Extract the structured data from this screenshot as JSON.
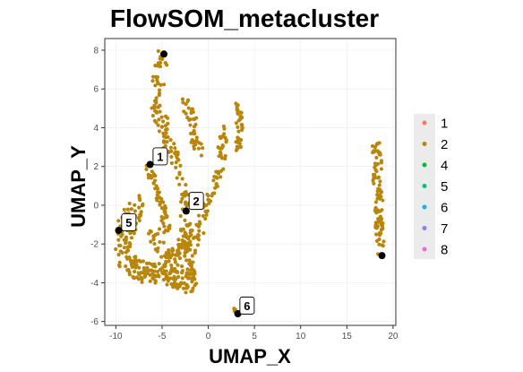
{
  "colors": {
    "panel_background": "#ffffff",
    "panel_border": "#333333",
    "grid": "#ebebeb",
    "legend_background": "#ebebeb",
    "centroid": "#000000",
    "point_default": "#B8860B"
  },
  "chart_data": {
    "type": "scatter",
    "title": "FlowSOM_metacluster",
    "xlabel": "UMAP_X",
    "ylabel": "UMAP_Y",
    "xlim": [
      -11.2,
      20.3
    ],
    "ylim": [
      -6.2,
      8.6
    ],
    "xticks": [
      -10,
      -5,
      0,
      5,
      10,
      15,
      20
    ],
    "yticks": [
      -6,
      -4,
      -2,
      0,
      2,
      4,
      6,
      8
    ],
    "grid": true,
    "legend_position": "right",
    "legend": [
      {
        "label": "1",
        "color": "#F8766D"
      },
      {
        "label": "2",
        "color": "#B8860B"
      },
      {
        "label": "4",
        "color": "#00BA38"
      },
      {
        "label": "5",
        "color": "#00C08B"
      },
      {
        "label": "6",
        "color": "#00B4EF"
      },
      {
        "label": "7",
        "color": "#8B7CFF"
      },
      {
        "label": "8",
        "color": "#F564E3"
      }
    ],
    "point_clusters": [
      {
        "label": "2",
        "path": [
          [
            -4.9,
            7.6
          ],
          [
            -5.3,
            6.6
          ],
          [
            -5.8,
            5.8
          ],
          [
            -5.6,
            5.0
          ],
          [
            -5.0,
            4.4
          ],
          [
            -4.6,
            3.5
          ],
          [
            -3.9,
            2.8
          ],
          [
            -3.2,
            2.1
          ],
          [
            -2.8,
            1.0
          ],
          [
            -2.5,
            0.1
          ],
          [
            -2.4,
            -0.9
          ],
          [
            -2.2,
            -2.0
          ],
          [
            -1.9,
            -3.2
          ],
          [
            -1.8,
            -3.9
          ]
        ],
        "width": 0.6,
        "n": 170
      },
      {
        "label": "2",
        "path": [
          [
            -2.6,
            5.5
          ],
          [
            -2.2,
            4.9
          ],
          [
            -1.8,
            4.2
          ],
          [
            -1.4,
            3.4
          ],
          [
            -1.0,
            2.7
          ]
        ],
        "width": 0.5,
        "n": 45
      },
      {
        "label": "2",
        "path": [
          [
            -6.3,
            2.1
          ],
          [
            -5.9,
            1.3
          ],
          [
            -5.4,
            0.6
          ],
          [
            -4.9,
            -0.2
          ],
          [
            -4.6,
            -0.9
          ],
          [
            -4.3,
            -1.6
          ]
        ],
        "width": 0.4,
        "n": 50
      },
      {
        "label": "2",
        "path": [
          [
            1.6,
            4.0
          ],
          [
            1.5,
            2.8
          ],
          [
            1.2,
            1.8
          ],
          [
            0.6,
            0.9
          ],
          [
            0.0,
            0.1
          ],
          [
            -0.6,
            -0.7
          ],
          [
            -1.2,
            -1.5
          ],
          [
            -1.7,
            -2.3
          ]
        ],
        "width": 0.5,
        "n": 75
      },
      {
        "label": "2",
        "path": [
          [
            3.1,
            5.3
          ],
          [
            3.3,
            4.7
          ],
          [
            3.4,
            4.0
          ],
          [
            3.3,
            3.4
          ],
          [
            3.1,
            2.9
          ]
        ],
        "width": 0.35,
        "n": 40
      },
      {
        "label": "2",
        "path": [
          [
            -7.5,
            0.2
          ],
          [
            -8.3,
            -0.7
          ],
          [
            -9.1,
            -1.4
          ],
          [
            -9.3,
            -2.3
          ],
          [
            -8.5,
            -3.0
          ],
          [
            -7.2,
            -3.4
          ],
          [
            -5.6,
            -3.5
          ],
          [
            -4.0,
            -3.6
          ],
          [
            -2.6,
            -3.9
          ],
          [
            -1.6,
            -4.1
          ]
        ],
        "width": 0.8,
        "n": 220
      },
      {
        "label": "2",
        "path": [
          [
            -6.0,
            -1.4
          ],
          [
            -4.9,
            -2.3
          ],
          [
            -3.8,
            -2.7
          ],
          [
            -3.0,
            -2.3
          ],
          [
            -2.3,
            -1.6
          ]
        ],
        "width": 0.6,
        "n": 70
      },
      {
        "label": "2",
        "path": [
          [
            18.1,
            3.2
          ],
          [
            18.4,
            2.2
          ],
          [
            18.2,
            1.3
          ],
          [
            18.5,
            0.3
          ],
          [
            18.4,
            -0.6
          ],
          [
            18.6,
            -1.6
          ],
          [
            18.7,
            -2.4
          ]
        ],
        "width": 0.4,
        "n": 95
      },
      {
        "label": "2",
        "path": [
          [
            2.7,
            -5.3
          ],
          [
            3.1,
            -5.6
          ]
        ],
        "width": 0.1,
        "n": 8
      }
    ],
    "centroids": [
      {
        "label": "1",
        "x": -6.3,
        "y": 2.1,
        "label_x": -5.2,
        "label_y": 2.5
      },
      {
        "label": "2",
        "x": -2.4,
        "y": -0.3,
        "label_x": -1.3,
        "label_y": 0.2
      },
      {
        "label": "",
        "x": -4.8,
        "y": 7.8,
        "label_x": null,
        "label_y": null
      },
      {
        "label": "5",
        "x": -9.7,
        "y": -1.3,
        "label_x": -8.6,
        "label_y": -0.9
      },
      {
        "label": "6",
        "x": 3.2,
        "y": -5.6,
        "label_x": 4.2,
        "label_y": -5.2
      },
      {
        "label": "",
        "x": 18.8,
        "y": -2.6,
        "label_x": null,
        "label_y": null
      }
    ]
  }
}
